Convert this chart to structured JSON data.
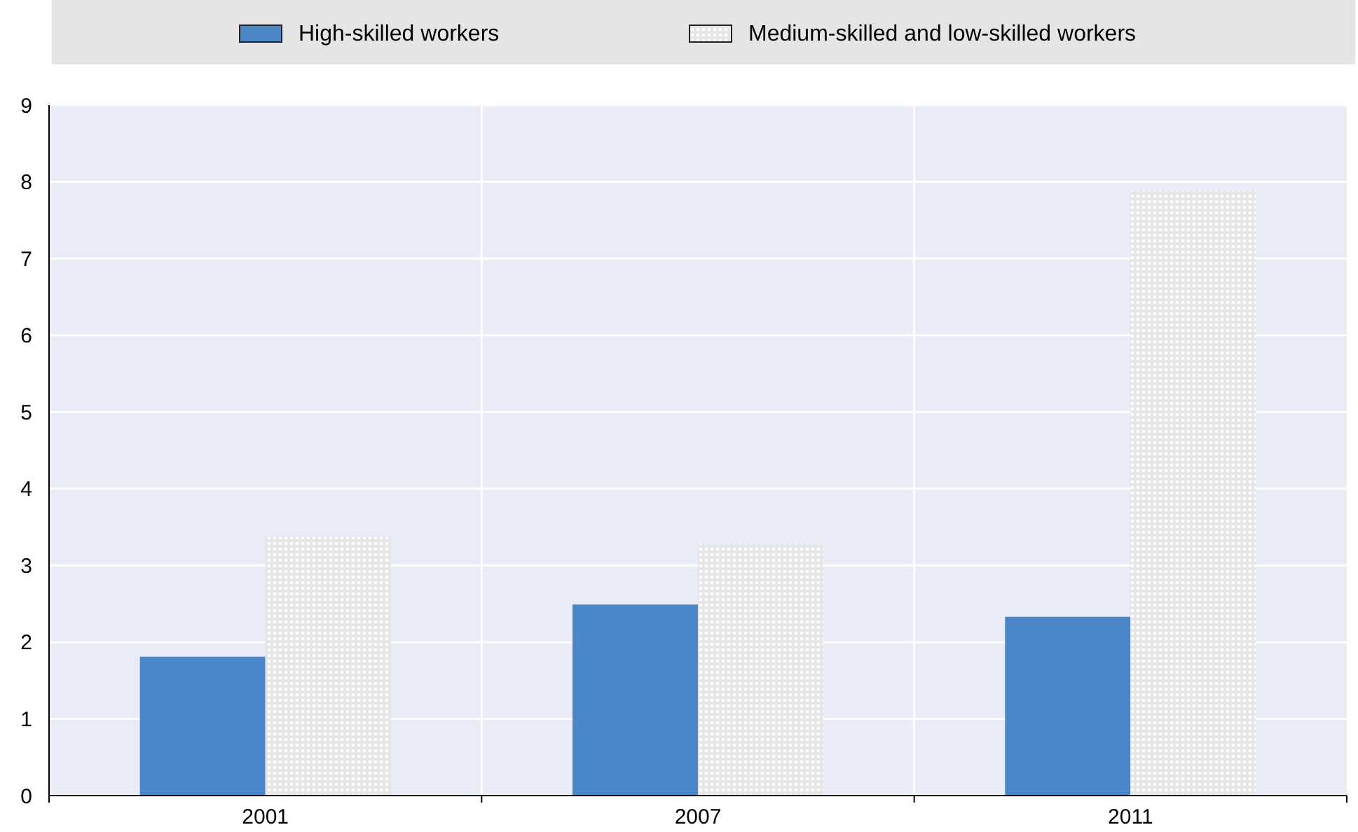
{
  "chart_data": {
    "type": "bar",
    "categories": [
      "2001",
      "2007",
      "2011"
    ],
    "series": [
      {
        "name": "High-skilled workers",
        "color": "#4a86c8",
        "values": [
          1.81,
          2.49,
          2.33
        ]
      },
      {
        "name": "Medium-skilled and low-skilled workers",
        "color": "#e6e6e6",
        "values": [
          3.37,
          3.28,
          7.88
        ]
      }
    ],
    "ylim": [
      0,
      9
    ],
    "yticks": [
      0,
      1,
      2,
      3,
      4,
      5,
      6,
      7,
      8,
      9
    ],
    "grid": true,
    "legend": "top"
  }
}
